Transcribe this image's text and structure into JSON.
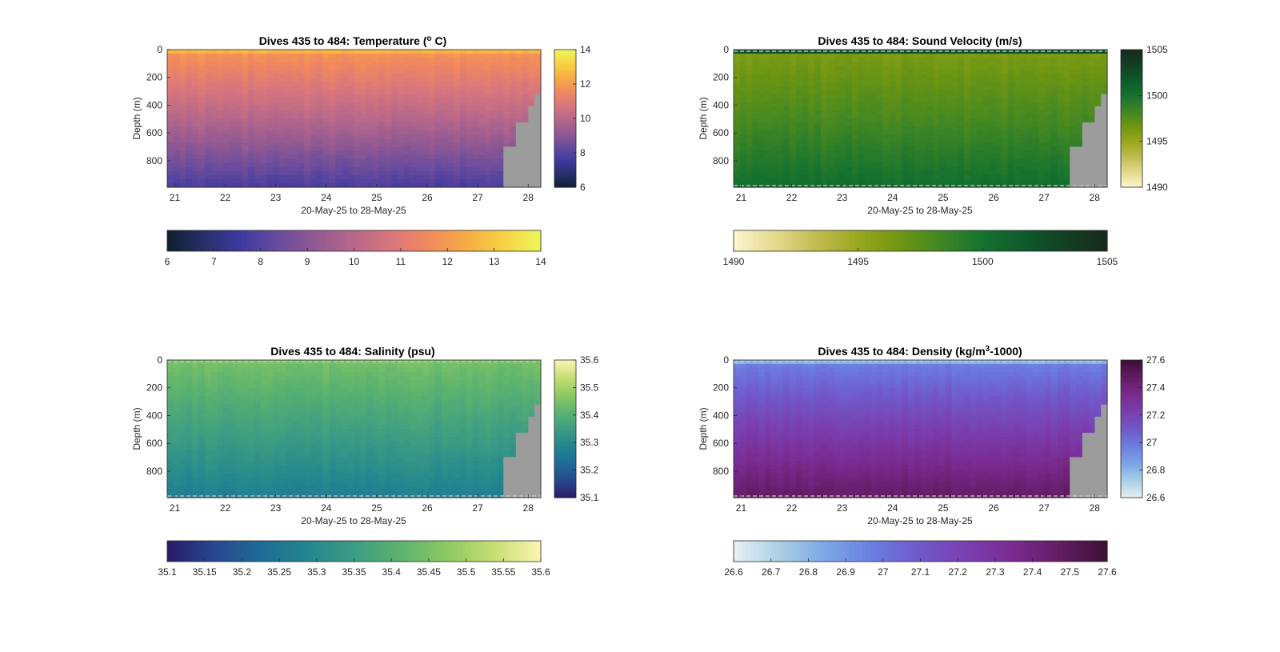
{
  "chart_data": [
    {
      "type": "heatmap",
      "title": "Dives 435 to 484: Temperature (",
      "title_sup": "o",
      "title_end": " C)",
      "xlabel": "20-May-25 to 28-May-25",
      "ylabel": "Depth (m)",
      "x_ticks": [
        "21",
        "22",
        "23",
        "24",
        "25",
        "26",
        "27",
        "28"
      ],
      "x_range": [
        20.85,
        28.25
      ],
      "y_ticks": [
        "0",
        "200",
        "400",
        "600",
        "800"
      ],
      "y_range": [
        0,
        990
      ],
      "colorbar_range": [
        6,
        14
      ],
      "colorbar_ticks": [
        "6",
        "8",
        "10",
        "12",
        "14"
      ],
      "hcolorbar_ticks": [
        "6",
        "7",
        "8",
        "9",
        "10",
        "11",
        "12",
        "13",
        "14"
      ],
      "colormap": [
        "#0d1f2d",
        "#27306b",
        "#3f3aa0",
        "#6a4c9c",
        "#935a92",
        "#b7688a",
        "#d9767c",
        "#f28a5c",
        "#f6ac45",
        "#f8d145",
        "#ecf75b"
      ],
      "profile": {
        "surface": 12.6,
        "near_surface": 11.8,
        "mid": 10.0,
        "deep": 7.8
      },
      "no_data_color": "#9c9c9c"
    },
    {
      "type": "heatmap",
      "title": "Dives 435 to 484: Sound Velocity (m/s)",
      "xlabel": "20-May-25 to 28-May-25",
      "ylabel": "Depth (m)",
      "x_ticks": [
        "21",
        "22",
        "23",
        "24",
        "25",
        "26",
        "27",
        "28"
      ],
      "x_range": [
        20.85,
        28.25
      ],
      "y_ticks": [
        "0",
        "200",
        "400",
        "600",
        "800"
      ],
      "y_range": [
        0,
        990
      ],
      "colorbar_range": [
        1490,
        1505
      ],
      "colorbar_ticks": [
        "1490",
        "1495",
        "1500",
        "1505"
      ],
      "hcolorbar_ticks": [
        "1490",
        "1495",
        "1500",
        "1505"
      ],
      "colormap": [
        "#fdf6d0",
        "#e4d98c",
        "#c1bb50",
        "#9aa71e",
        "#6f9612",
        "#3f8624",
        "#15722f",
        "#0f5a2b",
        "#143f24",
        "#182a1b"
      ],
      "profile": {
        "surface": 1502.0,
        "near_surface": 1496.2,
        "mid": 1498.0,
        "deep": 1500.3
      },
      "no_data_color": "#9c9c9c"
    },
    {
      "type": "heatmap",
      "title": "Dives 435 to 484: Salinity (psu)",
      "xlabel": "20-May-25 to 28-May-25",
      "ylabel": "Depth (m)",
      "x_ticks": [
        "21",
        "22",
        "23",
        "24",
        "25",
        "26",
        "27",
        "28"
      ],
      "x_range": [
        20.85,
        28.25
      ],
      "y_ticks": [
        "0",
        "200",
        "400",
        "600",
        "800"
      ],
      "y_range": [
        0,
        990
      ],
      "colorbar_range": [
        35.1,
        35.6
      ],
      "colorbar_ticks": [
        "35.1",
        "35.2",
        "35.3",
        "35.4",
        "35.5",
        "35.6"
      ],
      "hcolorbar_ticks": [
        "35.1",
        "35.15",
        "35.2",
        "35.25",
        "35.3",
        "35.35",
        "35.4",
        "35.45",
        "35.5",
        "35.55",
        "35.6"
      ],
      "colormap": [
        "#2a1a66",
        "#27478f",
        "#1f6b96",
        "#23858f",
        "#3d9c83",
        "#5cb36f",
        "#8dca63",
        "#c6dd73",
        "#fbf5b4"
      ],
      "profile": {
        "surface": 35.45,
        "near_surface": 35.44,
        "mid": 35.36,
        "deep": 35.27
      },
      "no_data_color": "#9c9c9c"
    },
    {
      "type": "heatmap",
      "title": "Dives 435 to 484: Density (kg/m",
      "title_sup": "3",
      "title_end": "-1000)",
      "xlabel": "20-May-25 to 28-May-25",
      "ylabel": "Depth (m)",
      "x_ticks": [
        "21",
        "22",
        "23",
        "24",
        "25",
        "26",
        "27",
        "28"
      ],
      "x_range": [
        20.85,
        28.25
      ],
      "y_ticks": [
        "0",
        "200",
        "400",
        "600",
        "800"
      ],
      "y_range": [
        0,
        990
      ],
      "colorbar_range": [
        26.6,
        27.6
      ],
      "colorbar_ticks": [
        "26.6",
        "26.8",
        "27",
        "27.2",
        "27.4",
        "27.6"
      ],
      "hcolorbar_ticks": [
        "26.6",
        "26.7",
        "26.8",
        "26.9",
        "27",
        "27.1",
        "27.2",
        "27.3",
        "27.4",
        "27.5",
        "27.6"
      ],
      "colormap": [
        "#e8f1f3",
        "#a9cfe6",
        "#7ba5e6",
        "#6b7ddf",
        "#7158c8",
        "#7a3fb0",
        "#7a2a8f",
        "#621c63",
        "#3d1036"
      ],
      "profile": {
        "surface": 26.82,
        "near_surface": 26.98,
        "mid": 27.23,
        "deep": 27.48
      },
      "no_data_color": "#9c9c9c"
    }
  ]
}
